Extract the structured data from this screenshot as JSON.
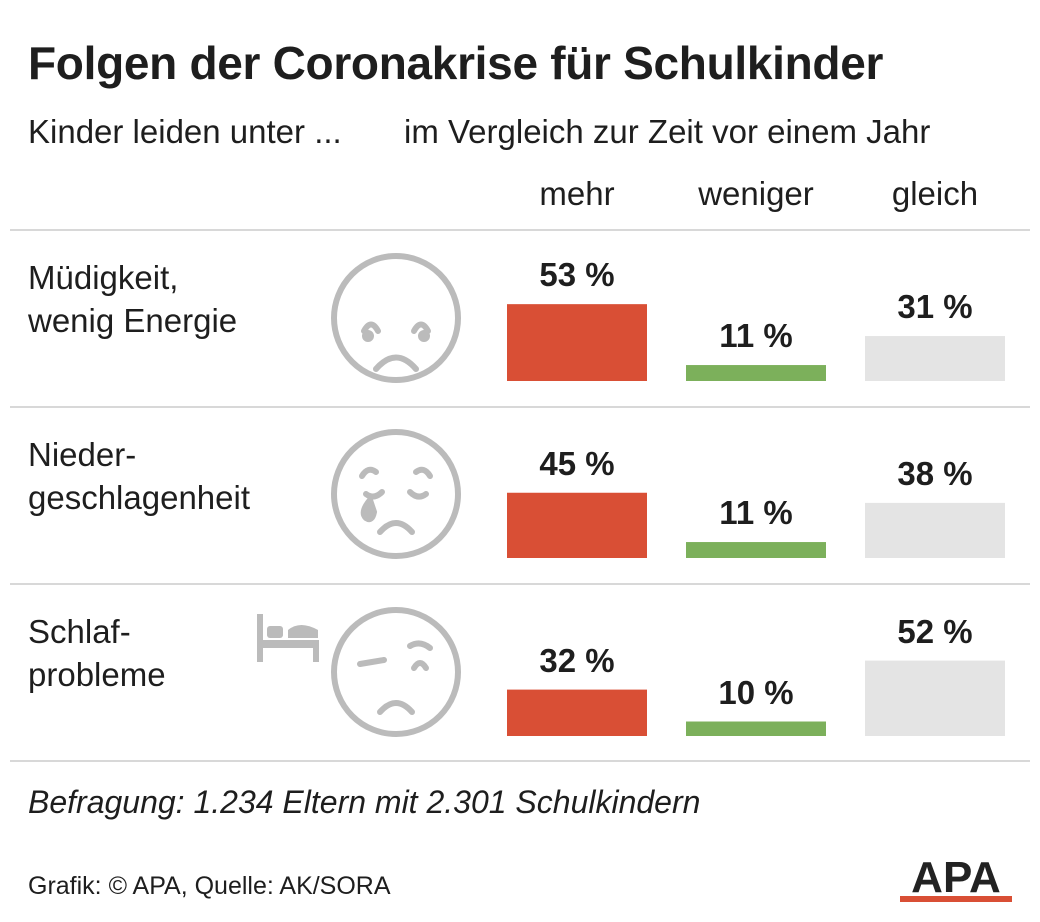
{
  "title": "Folgen der Coronakrise für Schulkinder",
  "subtitle_left": "Kinder leiden unter ...",
  "subtitle_right": "im Vergleich zur Zeit vor einem Jahr",
  "columns": [
    "mehr",
    "weniger",
    "gleich"
  ],
  "colors": {
    "mehr": "#d94f35",
    "weniger": "#7cb05b",
    "gleich": "#e4e4e4",
    "icon": "#bbbbbb",
    "logo": "#222222",
    "logo_accent": "#d94f35"
  },
  "chart_data": {
    "type": "bar",
    "categories": [
      "Müdigkeit, wenig Energie",
      "Nieder-geschlagenheit",
      "Schlaf-probleme"
    ],
    "series": [
      {
        "name": "mehr",
        "values": [
          53,
          45,
          32
        ]
      },
      {
        "name": "weniger",
        "values": [
          11,
          11,
          10
        ]
      },
      {
        "name": "gleich",
        "values": [
          31,
          38,
          52
        ]
      }
    ],
    "value_unit": "%",
    "value_labels": [
      [
        "53 %",
        "11 %",
        "31 %"
      ],
      [
        "45 %",
        "11 %",
        "38 %"
      ],
      [
        "32 %",
        "10 %",
        "52 %"
      ]
    ],
    "ylim": [
      0,
      100
    ]
  },
  "rows": [
    {
      "label": "Müdigkeit, wenig Energie",
      "icon": "sad-face-icon"
    },
    {
      "label": "Nieder-geschlagenheit",
      "icon": "crying-face-icon"
    },
    {
      "label": "Schlaf-probleme",
      "icon": "tired-face-icon",
      "extra_icon": "bed-icon"
    }
  ],
  "note": "Befragung: 1.234 Eltern mit 2.301 Schulkindern",
  "source": "Grafik: © APA, Quelle: AK/SORA",
  "logo": "APA"
}
